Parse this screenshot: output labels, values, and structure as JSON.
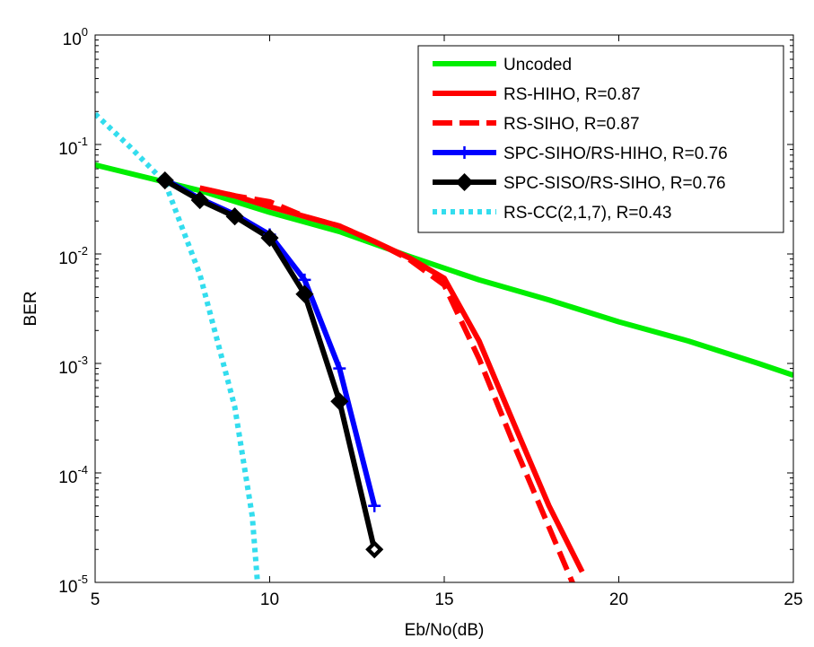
{
  "chart_data": {
    "type": "line",
    "xlabel": "Eb/No(dB)",
    "ylabel": "BER",
    "xlim": [
      5,
      25
    ],
    "ylim": [
      1e-05,
      1
    ],
    "yscale": "log",
    "x_ticks": [
      "5",
      "10",
      "15",
      "20",
      "25"
    ],
    "y_ticks": [
      {
        "base": "10",
        "exp": "0"
      },
      {
        "base": "10",
        "exp": "-1"
      },
      {
        "base": "10",
        "exp": "-2"
      },
      {
        "base": "10",
        "exp": "-3"
      },
      {
        "base": "10",
        "exp": "-4"
      },
      {
        "base": "10",
        "exp": "-5"
      }
    ],
    "grid": false,
    "legend_position": "top-right",
    "series": [
      {
        "name": "Uncoded",
        "color": "#00ee00",
        "style": "solid",
        "marker": "none",
        "points": [
          [
            5,
            0.065
          ],
          [
            8,
            0.038
          ],
          [
            10,
            0.024
          ],
          [
            12,
            0.016
          ],
          [
            14,
            0.0095
          ],
          [
            16,
            0.0058
          ],
          [
            18,
            0.0038
          ],
          [
            20,
            0.0024
          ],
          [
            22,
            0.0016
          ],
          [
            24,
            0.001
          ],
          [
            25,
            0.00078
          ]
        ]
      },
      {
        "name": "RS-HIHO, R=0.87",
        "color": "#ff0000",
        "style": "solid",
        "marker": "none",
        "points": [
          [
            8,
            0.04
          ],
          [
            9,
            0.034
          ],
          [
            10,
            0.027
          ],
          [
            11,
            0.022
          ],
          [
            12,
            0.018
          ],
          [
            13,
            0.013
          ],
          [
            14,
            0.0092
          ],
          [
            15,
            0.006
          ],
          [
            16,
            0.0016
          ],
          [
            17,
            0.00028
          ],
          [
            18,
            5e-05
          ],
          [
            18.95,
            1.25e-05
          ]
        ]
      },
      {
        "name": "RS-SIHO, R=0.87",
        "color": "#ff0000",
        "style": "dashed",
        "marker": "none",
        "points": [
          [
            8,
            0.04
          ],
          [
            9,
            0.034
          ],
          [
            10,
            0.03
          ],
          [
            11,
            0.022
          ],
          [
            12,
            0.018
          ],
          [
            13,
            0.013
          ],
          [
            14,
            0.0089
          ],
          [
            15,
            0.0052
          ],
          [
            16,
            0.0011
          ],
          [
            17,
            0.00018
          ],
          [
            18,
            3.2e-05
          ],
          [
            18.7,
            9.5e-06
          ]
        ]
      },
      {
        "name": "SPC-SIHO/RS-HIHO, R=0.76",
        "color": "#0000ff",
        "style": "solid",
        "marker": "plus",
        "points": [
          [
            7,
            0.048
          ],
          [
            8,
            0.032
          ],
          [
            9,
            0.023
          ],
          [
            10,
            0.015
          ],
          [
            11,
            0.0058
          ],
          [
            12,
            0.0009
          ],
          [
            13,
            5e-05
          ]
        ]
      },
      {
        "name": "SPC-SISO/RS-SIHO, R=0.76",
        "color": "#000000",
        "style": "solid",
        "marker": "diamond",
        "points": [
          [
            7,
            0.047
          ],
          [
            8,
            0.031
          ],
          [
            9,
            0.022
          ],
          [
            10,
            0.014
          ],
          [
            11,
            0.0043
          ],
          [
            12,
            0.00045
          ],
          [
            13,
            2e-05
          ]
        ]
      },
      {
        "name": "RS-CC(2,1,7), R=0.43",
        "color": "#33ddee",
        "style": "dotted",
        "marker": "none",
        "points": [
          [
            5,
            0.19
          ],
          [
            6,
            0.095
          ],
          [
            7,
            0.045
          ],
          [
            8,
            0.0065
          ],
          [
            9,
            0.0004
          ],
          [
            9.5,
            4e-05
          ],
          [
            9.65,
            1e-05
          ]
        ]
      }
    ]
  }
}
